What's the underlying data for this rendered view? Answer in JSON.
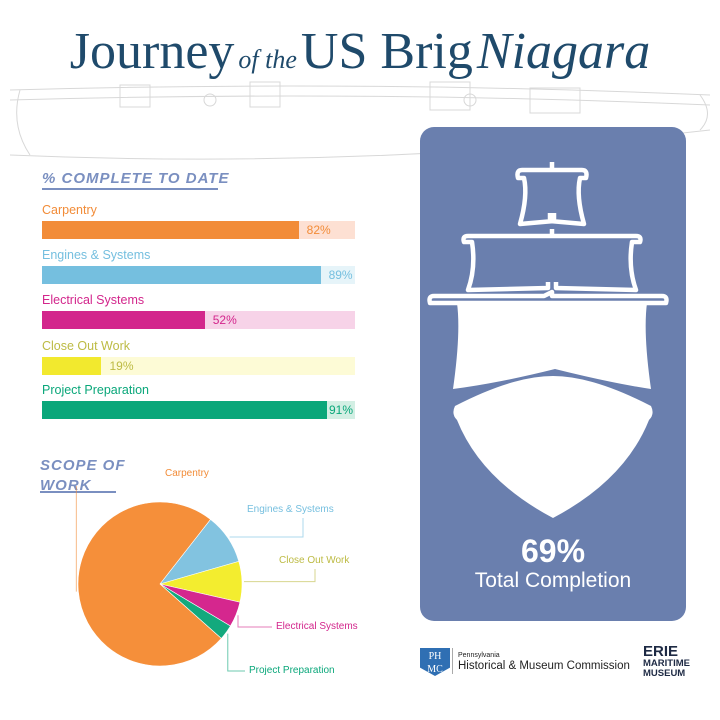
{
  "title": {
    "part1": "Journey",
    "part2": "of the",
    "part3": "US Brig",
    "part4": "Niagara"
  },
  "chart_data": [
    {
      "type": "bar",
      "title": "% COMPLETE TO DATE",
      "unit": "%",
      "categories": [
        "Carpentry",
        "Engines & Systems",
        "Electrical Systems",
        "Close Out Work",
        "Project Preparation"
      ],
      "values": [
        82,
        89,
        52,
        19,
        91
      ],
      "labels": [
        "82%",
        "89%",
        "52%",
        "19%",
        "91%"
      ],
      "colors": [
        "#f28c38",
        "#75bfdf",
        "#d3268c",
        "#f2e92e",
        "#0aa77a"
      ],
      "track_colors": [
        "#fde0d3",
        "#e6f4f9",
        "#f7d3e8",
        "#fdfbd6",
        "#d3efe4"
      ],
      "label_colors": [
        "#f28c38",
        "#75bfdf",
        "#d3268c",
        "#bdbb44",
        "#0aa77a"
      ],
      "ylim": [
        0,
        100
      ]
    },
    {
      "type": "pie",
      "title": "SCOPE OF WORK",
      "title_lines": [
        "SCOPE OF",
        "WORK"
      ],
      "categories": [
        "Carpentry",
        "Engines & Systems",
        "Close Out Work",
        "Electrical Systems",
        "Project Preparation"
      ],
      "values": [
        74,
        10,
        8,
        5,
        3
      ],
      "colors": [
        "#f58f3a",
        "#82c3e0",
        "#f3ed2f",
        "#d5278e",
        "#13a97d"
      ],
      "label_colors": [
        "#f28c38",
        "#75bfdf",
        "#bdbb44",
        "#d3268c",
        "#0aa77a"
      ]
    }
  ],
  "summary": {
    "value": "69%",
    "label": "Total Completion",
    "progress": 69,
    "panel_color": "#6a7fae"
  },
  "logos": {
    "phmc_mark": "PHMC",
    "phmc_line1": "Pennsylvania",
    "phmc_line2": "Historical & Museum Commission",
    "erie_line1": "ERIE",
    "erie_line2": "MARITIME",
    "erie_line3": "MUSEUM"
  }
}
